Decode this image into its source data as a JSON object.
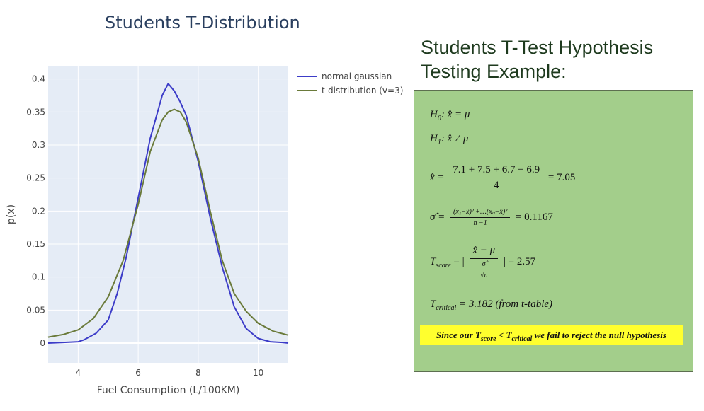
{
  "chart_data": {
    "type": "line",
    "title": "Students T-Distribution",
    "xlabel": "Fuel Consumption (L/100KM)",
    "ylabel": "p(x)",
    "xlim": [
      3,
      11
    ],
    "ylim": [
      -0.03,
      0.42
    ],
    "x_ticks": [
      4,
      6,
      8,
      10
    ],
    "y_ticks": [
      0,
      0.05,
      0.1,
      0.15,
      0.2,
      0.25,
      0.3,
      0.35,
      0.4
    ],
    "y_tick_labels": [
      "0",
      "0.05",
      "0.1",
      "0.15",
      "0.2",
      "0.25",
      "0.3",
      "0.35",
      "0.4"
    ],
    "grid": true,
    "legend_position": "top-right",
    "series": [
      {
        "name": "normal gaussian",
        "color": "#3c3cc8",
        "x": [
          3,
          3.5,
          4,
          4.2,
          4.6,
          5.0,
          5.3,
          5.6,
          6.0,
          6.4,
          6.8,
          7.0,
          7.2,
          7.4,
          7.6,
          8.0,
          8.4,
          8.8,
          9.2,
          9.6,
          10.0,
          10.4,
          10.8,
          11
        ],
        "y": [
          0.0,
          0.001,
          0.002,
          0.005,
          0.015,
          0.035,
          0.075,
          0.13,
          0.22,
          0.31,
          0.375,
          0.393,
          0.382,
          0.365,
          0.345,
          0.275,
          0.19,
          0.115,
          0.055,
          0.022,
          0.007,
          0.002,
          0.001,
          0.0
        ]
      },
      {
        "name": "t-distribution (v=3)",
        "color": "#6a7a3a",
        "x": [
          3,
          3.5,
          4,
          4.5,
          5.0,
          5.5,
          6.0,
          6.4,
          6.8,
          7.0,
          7.2,
          7.4,
          7.6,
          8.0,
          8.4,
          8.8,
          9.2,
          9.6,
          10.0,
          10.5,
          11
        ],
        "y": [
          0.009,
          0.013,
          0.02,
          0.037,
          0.07,
          0.125,
          0.21,
          0.29,
          0.338,
          0.35,
          0.354,
          0.35,
          0.335,
          0.28,
          0.2,
          0.125,
          0.075,
          0.048,
          0.03,
          0.018,
          0.012
        ]
      }
    ]
  },
  "panel": {
    "title_line1": "Students T-Test Hypothesis",
    "title_line2": "Testing Example:"
  },
  "hypothesis": {
    "h0_var": "H",
    "h0_sub": "0",
    "h0_expr": ": x̂ = μ",
    "h1_var": "H",
    "h1_sub": "1",
    "h1_expr": ": x̂ ≠ μ",
    "mean_lhs": "x̂ =",
    "mean_num": "7.1 +  7.5 + 6.7 +  6.9",
    "mean_den": "4",
    "mean_result": "= 7.05",
    "sigma_lhs": "σ̂ =",
    "sigma_num": "(x₁−x̂)² +…(xₙ−x̂)²",
    "sigma_den": "n −1",
    "sigma_result": "= 0.1167",
    "tscore_var": "T",
    "tscore_sub": "score",
    "tscore_eq": "= |",
    "tscore_num": "x̂  − μ",
    "tscore_den_top": "σ̂",
    "tscore_den_bottom": "√n",
    "tscore_result": "|  =  2.57",
    "tcrit_var": "T",
    "tcrit_sub": "critical",
    "tcrit_rest": "= 3.182 (from t-table)",
    "conclusion_a": "Since our ",
    "conclusion_t1": "T",
    "conclusion_sub1": "score",
    "conclusion_lt": " < ",
    "conclusion_t2": "T",
    "conclusion_sub2": "critical",
    "conclusion_b": " we fail to reject the null hypothesis"
  }
}
